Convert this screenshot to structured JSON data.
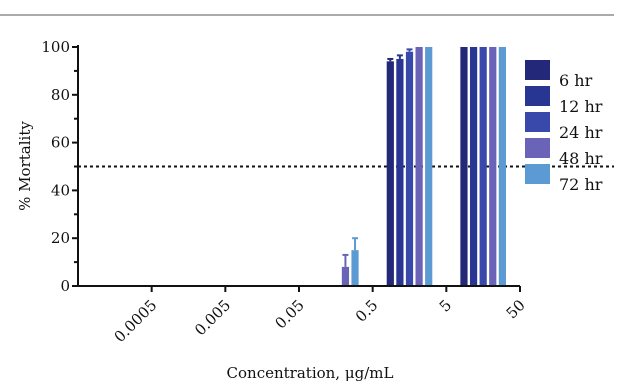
{
  "chart_data": {
    "type": "bar",
    "xlabel": "Concentration, μg/mL",
    "ylabel": "% Mortality",
    "ylim": [
      0,
      100
    ],
    "yticks": [
      0,
      20,
      40,
      60,
      80,
      100
    ],
    "reference_line": 50,
    "categories": [
      "0.0005",
      "0.005",
      "0.05",
      "0.5",
      "5",
      "50"
    ],
    "series": [
      {
        "name": "6 hr",
        "color": "#232878",
        "values": [
          0,
          0,
          0,
          0,
          94,
          100
        ],
        "errors": [
          0,
          0,
          0,
          0,
          1,
          0
        ]
      },
      {
        "name": "12 hr",
        "color": "#283593",
        "values": [
          0,
          0,
          0,
          0,
          95,
          100
        ],
        "errors": [
          0,
          0,
          0,
          0,
          1.5,
          0
        ]
      },
      {
        "name": "24 hr",
        "color": "#3949ab",
        "values": [
          0,
          0,
          0,
          0,
          98,
          100
        ],
        "errors": [
          0,
          0,
          0,
          0,
          1,
          0
        ]
      },
      {
        "name": "48 hr",
        "color": "#6a63b8",
        "values": [
          0,
          0,
          0,
          8,
          100,
          100
        ],
        "errors": [
          0,
          0,
          0,
          5,
          0,
          0
        ]
      },
      {
        "name": "72 hr",
        "color": "#5c9ad4",
        "values": [
          0,
          0,
          0,
          15,
          100,
          100
        ],
        "errors": [
          0,
          0,
          0,
          5,
          0,
          0
        ]
      }
    ],
    "legend_position": "right"
  }
}
